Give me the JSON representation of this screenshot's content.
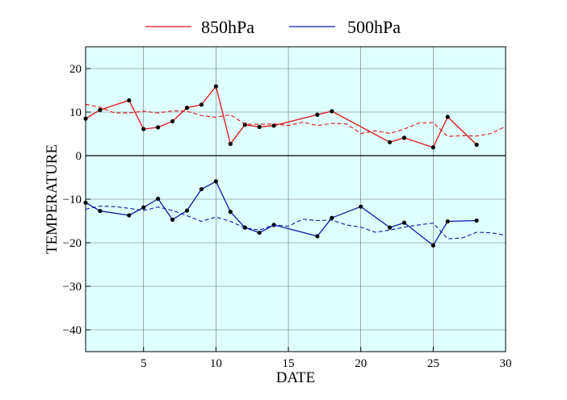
{
  "chart_data": {
    "type": "line",
    "xlabel": "DATE",
    "ylabel": "TEMPERATURE",
    "xlim": [
      1,
      30
    ],
    "ylim": [
      -45,
      25
    ],
    "xticks": [
      5,
      10,
      15,
      20,
      25,
      30
    ],
    "yticks": [
      -40,
      -30,
      -20,
      -10,
      0,
      10,
      20
    ],
    "grid": true,
    "legend_position": "top-center",
    "background_color": "#dfffff",
    "series": [
      {
        "name": "850hPa",
        "color": "#dd1111",
        "style": "solid-markers",
        "x": [
          1,
          2,
          4,
          5,
          6,
          7,
          8,
          9,
          10,
          11,
          12,
          13,
          14,
          17,
          18,
          22,
          23,
          25,
          26,
          28
        ],
        "y": [
          8.5,
          10.5,
          12.7,
          6.1,
          6.5,
          7.9,
          11,
          11.7,
          15.9,
          2.7,
          7.1,
          6.6,
          6.9,
          9.4,
          10.2,
          3.1,
          4.1,
          1.9,
          8.9,
          2.5
        ]
      },
      {
        "name": "",
        "color": "#dd1111",
        "style": "dashed",
        "x": [
          1,
          2,
          3,
          4,
          5,
          6,
          7,
          8,
          9,
          10,
          11,
          12,
          13,
          14,
          15,
          16,
          17,
          18,
          19,
          20,
          21,
          22,
          23,
          24,
          25,
          26,
          27,
          28,
          29,
          30
        ],
        "y": [
          11.8,
          11.1,
          9.8,
          9.8,
          10.2,
          9.8,
          10.3,
          10.2,
          9.2,
          8.8,
          9.4,
          7.2,
          7.2,
          7.3,
          6.9,
          7.7,
          6.9,
          7.4,
          7.3,
          5.1,
          5.7,
          5.1,
          6.1,
          7.5,
          7.6,
          4.4,
          4.6,
          4.5,
          5.1,
          6.7
        ]
      },
      {
        "name": "500hPa",
        "color": "#0a1aa0",
        "style": "solid-markers",
        "x": [
          1,
          2,
          4,
          5,
          6,
          7,
          8,
          9,
          10,
          11,
          12,
          13,
          14,
          17,
          18,
          20,
          22,
          23,
          25,
          26,
          28
        ],
        "y": [
          -10.8,
          -12.7,
          -13.7,
          -11.9,
          -9.9,
          -14.7,
          -12.6,
          -7.7,
          -5.9,
          -12.9,
          -16.5,
          -17.7,
          -15.9,
          -18.5,
          -14.3,
          -11.7,
          -16.5,
          -15.4,
          -20.6,
          -15.1,
          -14.9
        ]
      },
      {
        "name": "",
        "color": "#0a1aa0",
        "style": "dashed",
        "x": [
          1,
          2,
          3,
          4,
          5,
          6,
          7,
          8,
          9,
          10,
          11,
          12,
          13,
          14,
          15,
          16,
          17,
          18,
          19,
          20,
          21,
          22,
          23,
          24,
          25,
          26,
          27,
          28,
          29,
          30
        ],
        "y": [
          -12.3,
          -11.6,
          -11.7,
          -12.1,
          -12.6,
          -11.8,
          -12.6,
          -13.8,
          -15.1,
          -14.1,
          -15.1,
          -16.6,
          -17.1,
          -15.9,
          -16.2,
          -14.6,
          -14.9,
          -14.8,
          -15.9,
          -16.4,
          -17.6,
          -17.1,
          -16.4,
          -15.9,
          -15.5,
          -19.1,
          -18.9,
          -17.6,
          -17.7,
          -18.3
        ]
      }
    ]
  }
}
